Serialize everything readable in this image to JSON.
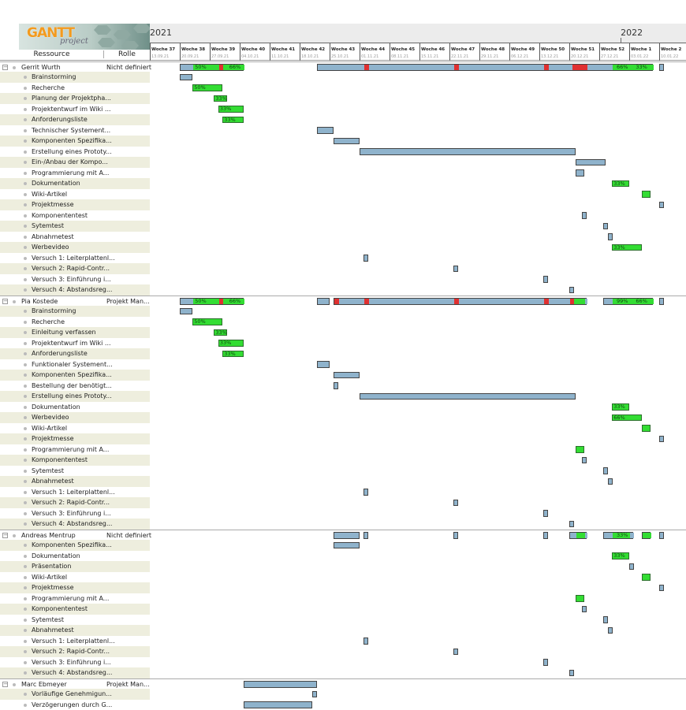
{
  "logo": {
    "text": "GANTT",
    "sub": "project"
  },
  "columns": {
    "resource": "Ressource",
    "role": "Rolle"
  },
  "years": [
    {
      "label": "2021",
      "day": 0
    },
    {
      "label": "2022",
      "day": 110
    }
  ],
  "weeks": [
    [
      "Woche 37",
      "13.09.21"
    ],
    [
      "Woche 38",
      "20.09.21"
    ],
    [
      "Woche 39",
      "27.09.21"
    ],
    [
      "Woche 40",
      "04.10.21"
    ],
    [
      "Woche 41",
      "11.10.21"
    ],
    [
      "Woche 42",
      "18.10.21"
    ],
    [
      "Woche 43",
      "25.10.21"
    ],
    [
      "Woche 44",
      "01.11.21"
    ],
    [
      "Woche 45",
      "08.11.21"
    ],
    [
      "Woche 46",
      "15.11.21"
    ],
    [
      "Woche 47",
      "22.11.21"
    ],
    [
      "Woche 48",
      "29.11.21"
    ],
    [
      "Woche 49",
      "06.12.21"
    ],
    [
      "Woche 50",
      "13.12.21"
    ],
    [
      "Woche 51",
      "20.12.21"
    ],
    [
      "Woche 52",
      "27.12.21"
    ],
    [
      "Woche 1",
      "03.01.22"
    ],
    [
      "Woche 2",
      "10.01.22"
    ]
  ],
  "colors": {
    "planned": "#8fb3cc",
    "done": "#33dd33",
    "overdue": "#e03030"
  },
  "rows": [
    {
      "type": "res",
      "name": "Gerrit Wurth",
      "role": "Nicht definiert",
      "bars": [
        {
          "s": 7,
          "e": 22,
          "segs": [
            [
              7,
              10,
              "plan"
            ],
            [
              10,
              16,
              "done"
            ],
            [
              16,
              17,
              "over"
            ],
            [
              17,
              22,
              "done"
            ]
          ],
          "labels": [
            [
              10,
              "50%"
            ],
            [
              18,
              "66%"
            ]
          ]
        },
        {
          "s": 39,
          "e": 117.5,
          "segs": [
            [
              39,
              50,
              "plan"
            ],
            [
              50,
              51,
              "over"
            ],
            [
              51,
              71,
              "plan"
            ],
            [
              71,
              72,
              "over"
            ],
            [
              72,
              92,
              "plan"
            ],
            [
              92,
              93,
              "over"
            ],
            [
              93,
              98.5,
              "plan"
            ],
            [
              98.5,
              102,
              "over"
            ],
            [
              102,
              108,
              "plan"
            ],
            [
              108,
              117.5,
              "done"
            ]
          ],
          "labels": [
            [
              108.5,
              "66%"
            ],
            [
              113,
              "33%"
            ]
          ]
        },
        {
          "s": 119,
          "e": 120,
          "segs": []
        }
      ]
    },
    {
      "type": "task",
      "name": "Brainstorming",
      "bars": [
        {
          "s": 7,
          "e": 10
        }
      ]
    },
    {
      "type": "task",
      "name": "Recherche",
      "bars": [
        {
          "s": 10,
          "e": 17,
          "done": 1,
          "label": "50%"
        }
      ]
    },
    {
      "type": "task",
      "name": "Planung der Projektpha...",
      "bars": [
        {
          "s": 15,
          "e": 18,
          "done": 1,
          "label": "33%"
        }
      ]
    },
    {
      "type": "task",
      "name": "Projektentwurf im Wiki ...",
      "bars": [
        {
          "s": 16,
          "e": 22,
          "done": 1,
          "label": "33%"
        }
      ]
    },
    {
      "type": "task",
      "name": "Anforderungsliste",
      "bars": [
        {
          "s": 17,
          "e": 22,
          "done": 1,
          "label": "33%"
        }
      ]
    },
    {
      "type": "task",
      "name": "Technischer Systement...",
      "bars": [
        {
          "s": 39,
          "e": 43
        }
      ]
    },
    {
      "type": "task",
      "name": "Komponenten Spezifika...",
      "bars": [
        {
          "s": 43,
          "e": 49
        }
      ]
    },
    {
      "type": "task",
      "name": "Erstellung eines Prototy...",
      "bars": [
        {
          "s": 49,
          "e": 99.5
        }
      ]
    },
    {
      "type": "task",
      "name": "Ein-/Anbau der Kompo...",
      "bars": [
        {
          "s": 99.5,
          "e": 106.5
        }
      ]
    },
    {
      "type": "task",
      "name": "Programmierung mit A...",
      "bars": [
        {
          "s": 99.5,
          "e": 101.5
        }
      ]
    },
    {
      "type": "task",
      "name": "Dokumentation",
      "bars": [
        {
          "s": 108,
          "e": 112,
          "done": 1,
          "label": "33%"
        }
      ]
    },
    {
      "type": "task",
      "name": "Wiki-Artikel",
      "bars": [
        {
          "s": 115,
          "e": 117,
          "done": 1
        }
      ]
    },
    {
      "type": "task",
      "name": "Projektmesse",
      "bars": [
        {
          "s": 119,
          "e": 120
        }
      ]
    },
    {
      "type": "task",
      "name": "Komponententest",
      "bars": [
        {
          "s": 101,
          "e": 102
        }
      ]
    },
    {
      "type": "task",
      "name": "Sytemtest",
      "bars": [
        {
          "s": 106,
          "e": 107
        }
      ]
    },
    {
      "type": "task",
      "name": "Abnahmetest",
      "bars": [
        {
          "s": 107,
          "e": 108
        }
      ]
    },
    {
      "type": "task",
      "name": "Werbevideo",
      "bars": [
        {
          "s": 108,
          "e": 115,
          "done": 1,
          "label": "33%"
        }
      ]
    },
    {
      "type": "task",
      "name": "Versuch 1: Leiterplattenl...",
      "bars": [
        {
          "s": 50,
          "e": 51
        }
      ]
    },
    {
      "type": "task",
      "name": "Versuch 2: Rapid-Contr...",
      "bars": [
        {
          "s": 71,
          "e": 72
        }
      ]
    },
    {
      "type": "task",
      "name": "Versuch 3: Einführung i...",
      "bars": [
        {
          "s": 92,
          "e": 93
        }
      ]
    },
    {
      "type": "task",
      "name": "Versuch 4: Abstandsreg...",
      "bars": [
        {
          "s": 98,
          "e": 99
        }
      ]
    },
    {
      "type": "res",
      "name": "Pia Kostede",
      "role": "Projekt Man...",
      "bars": [
        {
          "s": 7,
          "e": 22,
          "segs": [
            [
              7,
              10,
              "plan"
            ],
            [
              10,
              16,
              "done"
            ],
            [
              16,
              17,
              "over"
            ],
            [
              17,
              22,
              "done"
            ]
          ],
          "labels": [
            [
              10,
              "50%"
            ],
            [
              18,
              "66%"
            ]
          ]
        },
        {
          "s": 39,
          "e": 42,
          "segs": []
        },
        {
          "s": 43,
          "e": 102,
          "segs": [
            [
              43,
              44,
              "over"
            ],
            [
              44,
              50,
              "plan"
            ],
            [
              50,
              51,
              "over"
            ],
            [
              51,
              71,
              "plan"
            ],
            [
              71,
              72,
              "over"
            ],
            [
              72,
              92,
              "plan"
            ],
            [
              92,
              93,
              "over"
            ],
            [
              93,
              98,
              "plan"
            ],
            [
              98,
              99,
              "over"
            ],
            [
              99,
              101.5,
              "done"
            ],
            [
              101.5,
              102,
              "plan"
            ]
          ],
          "labels": []
        },
        {
          "s": 106,
          "e": 117.5,
          "segs": [
            [
              106,
              108,
              "plan"
            ],
            [
              108,
              117.5,
              "done"
            ]
          ],
          "labels": [
            [
              108.5,
              "99%"
            ],
            [
              113,
              "66%"
            ]
          ]
        },
        {
          "s": 119,
          "e": 120,
          "segs": []
        }
      ]
    },
    {
      "type": "task",
      "name": "Brainstorming",
      "bars": [
        {
          "s": 7,
          "e": 10
        }
      ]
    },
    {
      "type": "task",
      "name": "Recherche",
      "bars": [
        {
          "s": 10,
          "e": 17,
          "done": 1,
          "label": "50%"
        }
      ]
    },
    {
      "type": "task",
      "name": "Einleitung verfassen",
      "bars": [
        {
          "s": 15,
          "e": 18,
          "done": 1,
          "label": "33%"
        }
      ]
    },
    {
      "type": "task",
      "name": "Projektentwurf im Wiki ...",
      "bars": [
        {
          "s": 16,
          "e": 22,
          "done": 1,
          "label": "33%"
        }
      ]
    },
    {
      "type": "task",
      "name": "Anforderungsliste",
      "bars": [
        {
          "s": 17,
          "e": 22,
          "done": 1,
          "label": "33%"
        }
      ]
    },
    {
      "type": "task",
      "name": "Funktionaler Systement...",
      "bars": [
        {
          "s": 39,
          "e": 42
        }
      ]
    },
    {
      "type": "task",
      "name": "Komponenten Spezifika...",
      "bars": [
        {
          "s": 43,
          "e": 49
        }
      ]
    },
    {
      "type": "task",
      "name": "Bestellung der benötigt...",
      "bars": [
        {
          "s": 43,
          "e": 44
        }
      ]
    },
    {
      "type": "task",
      "name": "Erstellung eines Prototy...",
      "bars": [
        {
          "s": 49,
          "e": 99.5
        }
      ]
    },
    {
      "type": "task",
      "name": "Dokumentation",
      "bars": [
        {
          "s": 108,
          "e": 112,
          "done": 1,
          "label": "33%"
        }
      ]
    },
    {
      "type": "task",
      "name": "Werbevideo",
      "bars": [
        {
          "s": 108,
          "e": 115,
          "done": 1,
          "label": "66%"
        }
      ]
    },
    {
      "type": "task",
      "name": "Wiki-Artikel",
      "bars": [
        {
          "s": 115,
          "e": 117,
          "done": 1
        }
      ]
    },
    {
      "type": "task",
      "name": "Projektmesse",
      "bars": [
        {
          "s": 119,
          "e": 120
        }
      ]
    },
    {
      "type": "task",
      "name": "Programmierung mit A...",
      "bars": [
        {
          "s": 99.5,
          "e": 101.5,
          "done": 1
        }
      ]
    },
    {
      "type": "task",
      "name": "Komponententest",
      "bars": [
        {
          "s": 101,
          "e": 102
        }
      ]
    },
    {
      "type": "task",
      "name": "Sytemtest",
      "bars": [
        {
          "s": 106,
          "e": 107
        }
      ]
    },
    {
      "type": "task",
      "name": "Abnahmetest",
      "bars": [
        {
          "s": 107,
          "e": 108
        }
      ]
    },
    {
      "type": "task",
      "name": "Versuch 1: Leiterplattenl...",
      "bars": [
        {
          "s": 50,
          "e": 51
        }
      ]
    },
    {
      "type": "task",
      "name": "Versuch 2: Rapid-Contr...",
      "bars": [
        {
          "s": 71,
          "e": 72
        }
      ]
    },
    {
      "type": "task",
      "name": "Versuch 3: Einführung i...",
      "bars": [
        {
          "s": 92,
          "e": 93
        }
      ]
    },
    {
      "type": "task",
      "name": "Versuch 4: Abstandsreg...",
      "bars": [
        {
          "s": 98,
          "e": 99
        }
      ]
    },
    {
      "type": "res",
      "name": "Andreas Mentrup",
      "role": "Nicht definiert",
      "bars": [
        {
          "s": 43,
          "e": 49,
          "segs": []
        },
        {
          "s": 50,
          "e": 51,
          "segs": []
        },
        {
          "s": 71,
          "e": 72,
          "segs": []
        },
        {
          "s": 92,
          "e": 93,
          "segs": []
        },
        {
          "s": 98,
          "e": 102,
          "segs": [
            [
              98,
              99.5,
              "plan"
            ],
            [
              99.5,
              101.5,
              "done"
            ],
            [
              101.5,
              102,
              "plan"
            ]
          ],
          "labels": []
        },
        {
          "s": 106,
          "e": 113,
          "segs": [
            [
              106,
              108,
              "plan"
            ],
            [
              108,
              112,
              "done"
            ],
            [
              112,
              113,
              "plan"
            ]
          ],
          "labels": [
            [
              108.5,
              "33%"
            ]
          ]
        },
        {
          "s": 115,
          "e": 117,
          "segs": [
            [
              115,
              117,
              "done"
            ]
          ],
          "labels": []
        },
        {
          "s": 119,
          "e": 120,
          "segs": []
        }
      ]
    },
    {
      "type": "task",
      "name": "Komponenten Spezifika...",
      "bars": [
        {
          "s": 43,
          "e": 49
        }
      ]
    },
    {
      "type": "task",
      "name": "Dokumentation",
      "bars": [
        {
          "s": 108,
          "e": 112,
          "done": 1,
          "label": "33%"
        }
      ]
    },
    {
      "type": "task",
      "name": "Präsentation",
      "bars": [
        {
          "s": 112,
          "e": 113
        }
      ]
    },
    {
      "type": "task",
      "name": "Wiki-Artikel",
      "bars": [
        {
          "s": 115,
          "e": 117,
          "done": 1
        }
      ]
    },
    {
      "type": "task",
      "name": "Projektmesse",
      "bars": [
        {
          "s": 119,
          "e": 120
        }
      ]
    },
    {
      "type": "task",
      "name": "Programmierung mit A...",
      "bars": [
        {
          "s": 99.5,
          "e": 101.5,
          "done": 1
        }
      ]
    },
    {
      "type": "task",
      "name": "Komponententest",
      "bars": [
        {
          "s": 101,
          "e": 102
        }
      ]
    },
    {
      "type": "task",
      "name": "Sytemtest",
      "bars": [
        {
          "s": 106,
          "e": 107
        }
      ]
    },
    {
      "type": "task",
      "name": "Abnahmetest",
      "bars": [
        {
          "s": 107,
          "e": 108
        }
      ]
    },
    {
      "type": "task",
      "name": "Versuch 1: Leiterplattenl...",
      "bars": [
        {
          "s": 50,
          "e": 51
        }
      ]
    },
    {
      "type": "task",
      "name": "Versuch 2: Rapid-Contr...",
      "bars": [
        {
          "s": 71,
          "e": 72
        }
      ]
    },
    {
      "type": "task",
      "name": "Versuch 3: Einführung i...",
      "bars": [
        {
          "s": 92,
          "e": 93
        }
      ]
    },
    {
      "type": "task",
      "name": "Versuch 4: Abstandsreg...",
      "bars": [
        {
          "s": 98,
          "e": 99
        }
      ]
    },
    {
      "type": "res",
      "name": "Marc Ebmeyer",
      "role": "Projekt Man...",
      "bars": [
        {
          "s": 22,
          "e": 39,
          "segs": []
        }
      ]
    },
    {
      "type": "task",
      "name": "Vorläufige Genehmigun...",
      "bars": [
        {
          "s": 38,
          "e": 39
        }
      ]
    },
    {
      "type": "task",
      "name": "Verzögerungen durch G...",
      "bars": [
        {
          "s": 22,
          "e": 38
        }
      ]
    }
  ]
}
